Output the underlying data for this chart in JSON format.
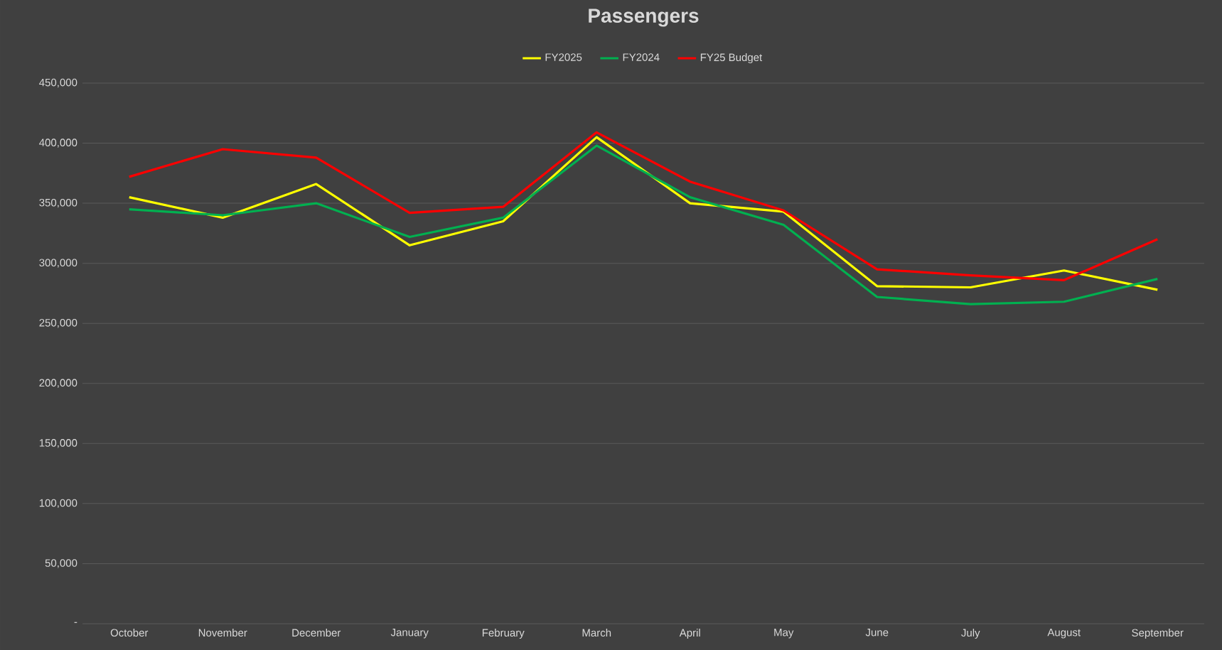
{
  "chart_data": {
    "type": "line",
    "title": "Passengers",
    "categories": [
      "October",
      "November",
      "December",
      "January",
      "February",
      "March",
      "April",
      "May",
      "June",
      "July",
      "August",
      "September"
    ],
    "series": [
      {
        "name": "FY2025",
        "color": "#ffff00",
        "values": [
          355000,
          338000,
          366000,
          315000,
          335000,
          405000,
          350000,
          343000,
          281000,
          280000,
          294000,
          278000
        ]
      },
      {
        "name": "FY2024",
        "color": "#00b050",
        "values": [
          345000,
          340000,
          350000,
          322000,
          338000,
          398000,
          355000,
          332000,
          272000,
          266000,
          268000,
          287000
        ]
      },
      {
        "name": "FY25 Budget",
        "color": "#ff0000",
        "values": [
          372000,
          395000,
          388000,
          342000,
          347000,
          409000,
          368000,
          344000,
          295000,
          290000,
          286000,
          320000
        ]
      }
    ],
    "ylim": [
      0,
      450000
    ],
    "yticks": [
      {
        "value": 0,
        "label": "-"
      },
      {
        "value": 50000,
        "label": "50,000"
      },
      {
        "value": 100000,
        "label": "100,000"
      },
      {
        "value": 150000,
        "label": "150,000"
      },
      {
        "value": 200000,
        "label": "200,000"
      },
      {
        "value": 250000,
        "label": "250,000"
      },
      {
        "value": 300000,
        "label": "300,000"
      },
      {
        "value": 350000,
        "label": "350,000"
      },
      {
        "value": 400000,
        "label": "400,000"
      },
      {
        "value": 450000,
        "label": "450,000"
      }
    ],
    "grid": "y",
    "legend": "top",
    "marker": "none",
    "line_style": "solid"
  }
}
